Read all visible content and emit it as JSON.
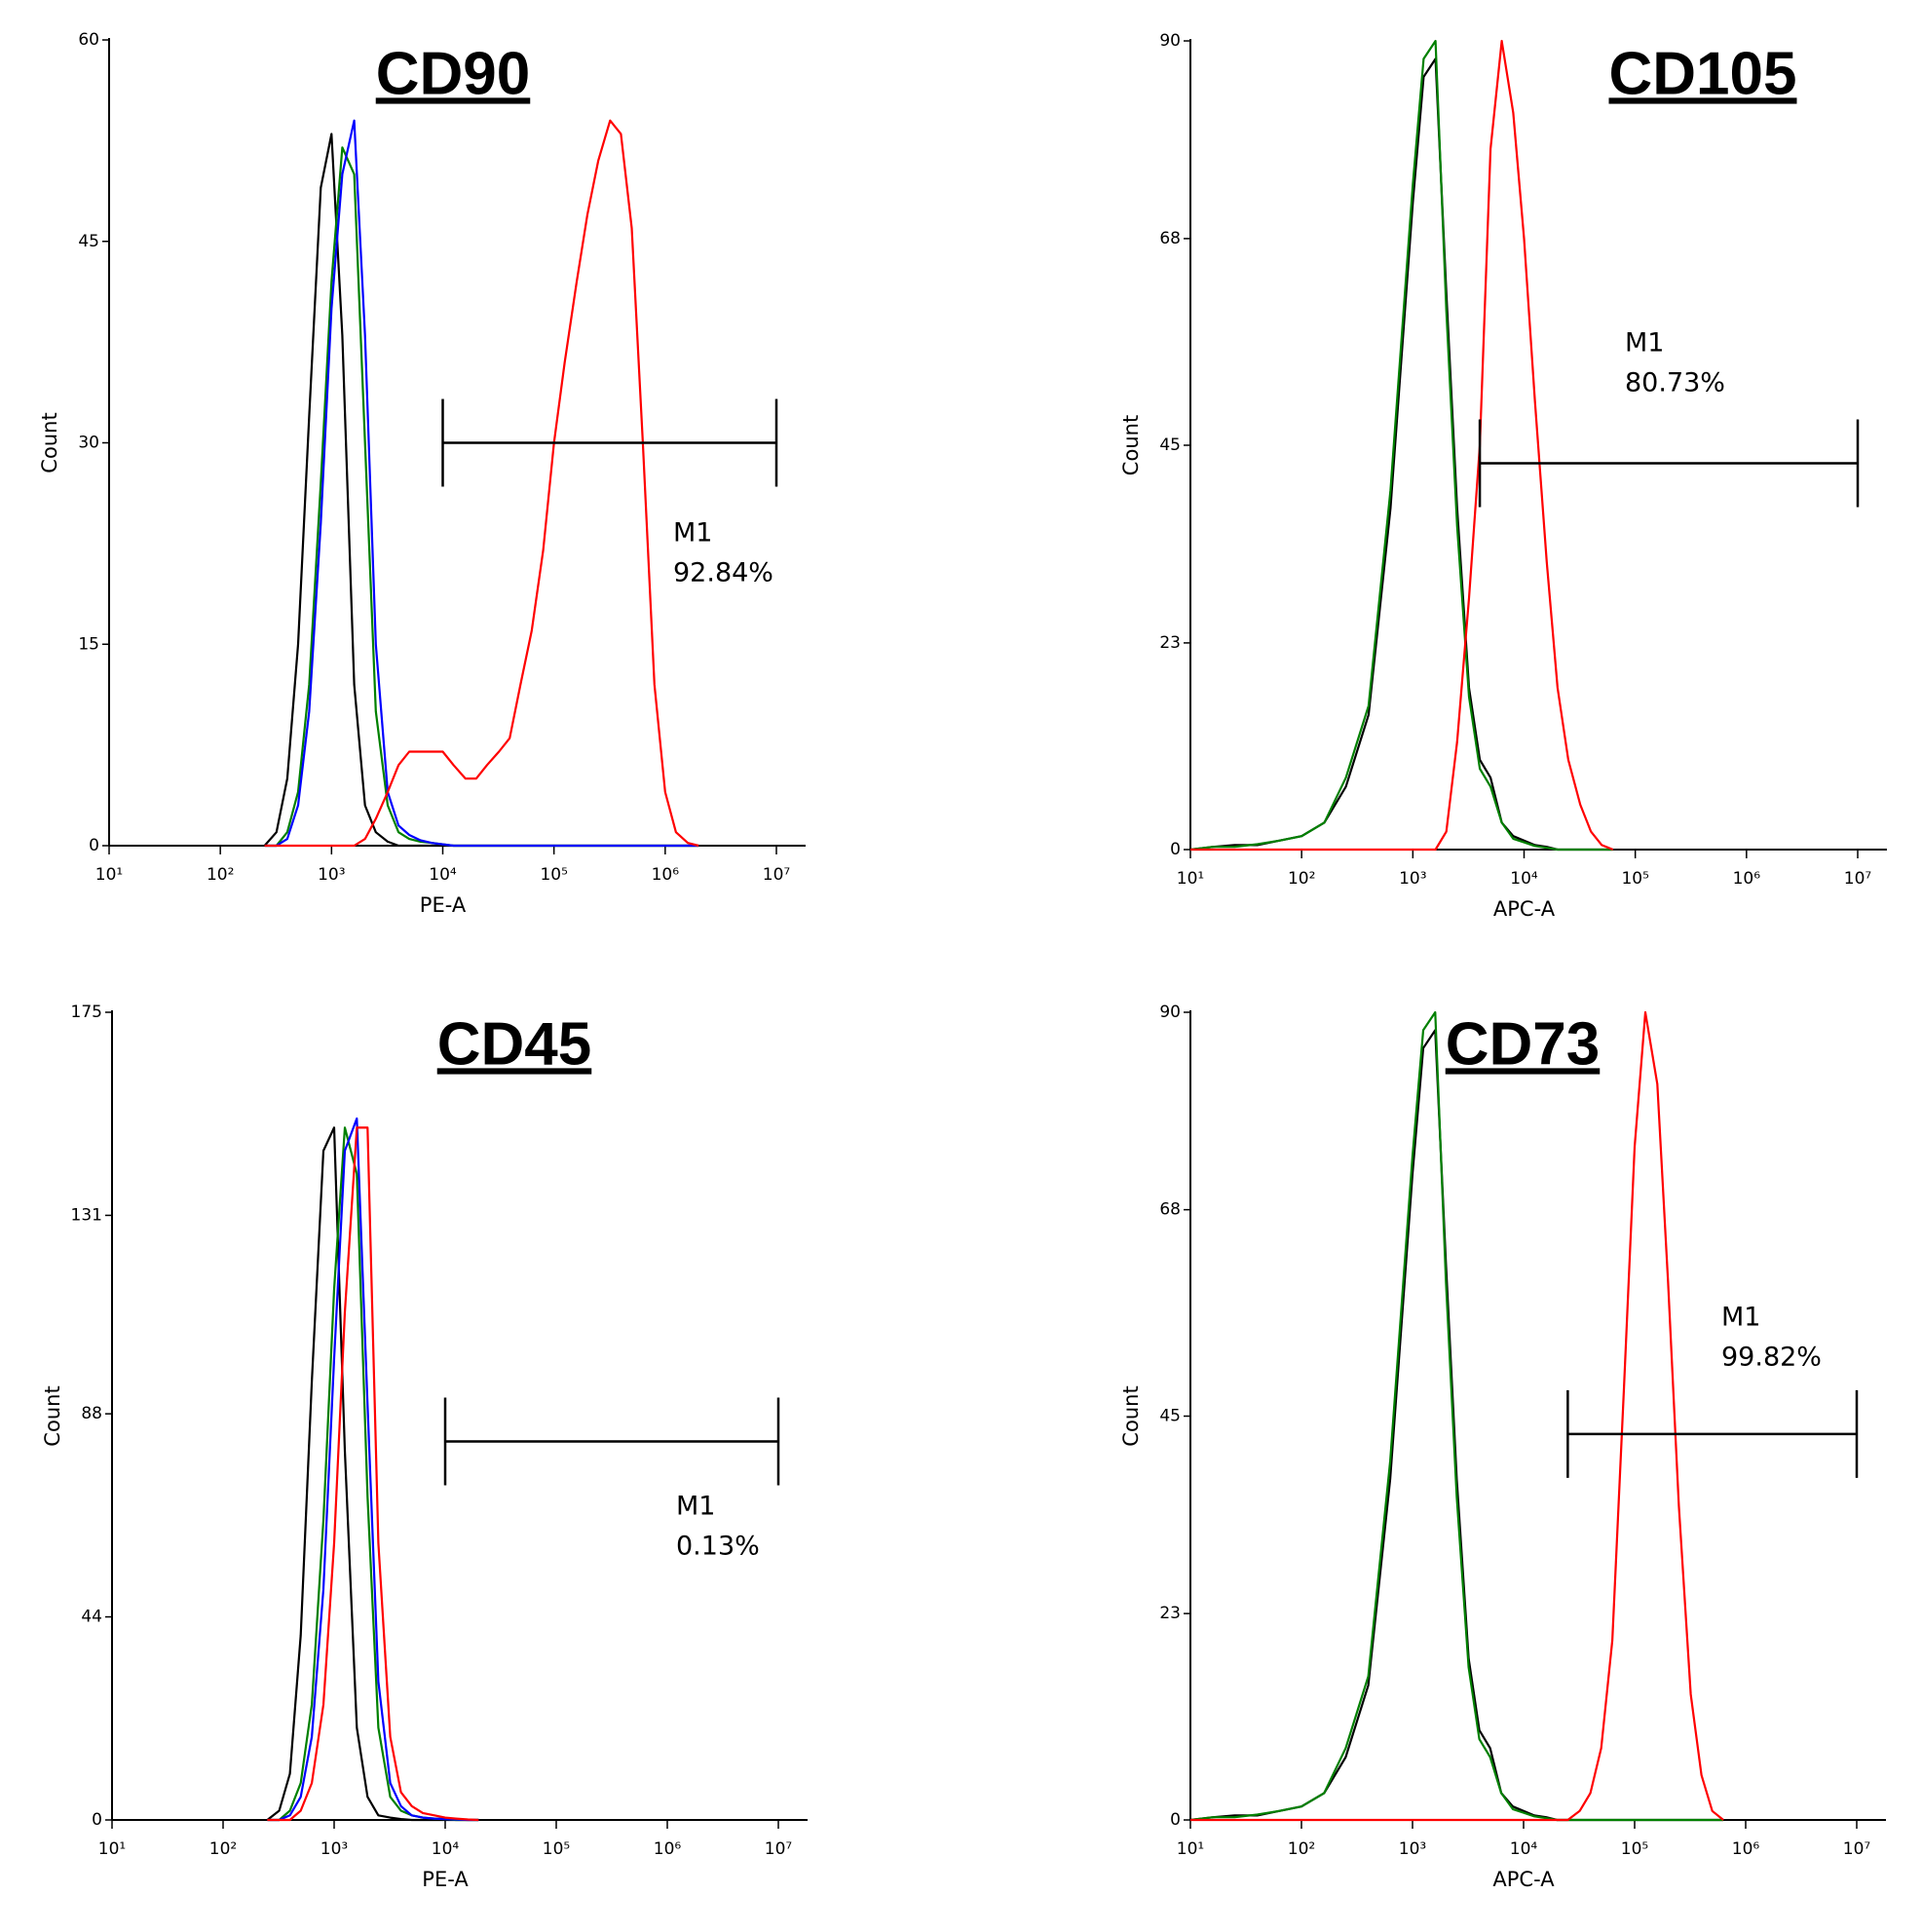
{
  "chart_data": [
    {
      "type": "line",
      "title": "CD90",
      "xlabel": "PE-A",
      "ylabel": "Count",
      "xscale": "log",
      "xlim": [
        10,
        10000000
      ],
      "ylim": [
        0,
        60
      ],
      "xticks": [
        {
          "value": 10,
          "label": "10¹"
        },
        {
          "value": 100,
          "label": "10²"
        },
        {
          "value": 1000,
          "label": "10³"
        },
        {
          "value": 10000,
          "label": "10⁴"
        },
        {
          "value": 100000,
          "label": "10⁵"
        },
        {
          "value": 1000000,
          "label": "10⁶"
        },
        {
          "value": 10000000,
          "label": "10⁷"
        }
      ],
      "yticks": [
        0,
        15,
        30,
        45,
        60
      ],
      "x": [
        250,
        320,
        400,
        500,
        630,
        800,
        1000,
        1250,
        1600,
        2000,
        2500,
        3200,
        4000,
        5000,
        6300,
        8000,
        10000,
        12500,
        16000,
        20000,
        25000,
        32000,
        40000,
        50000,
        63000,
        80000,
        100000,
        125000,
        160000,
        200000,
        250000,
        320000,
        400000,
        500000,
        630000,
        800000,
        1000000,
        1250000,
        1600000,
        2000000
      ],
      "series": [
        {
          "color": "#000000",
          "values": [
            0,
            1,
            5,
            15,
            32,
            49,
            53,
            38,
            12,
            3,
            1,
            0.3,
            0,
            0,
            0,
            0,
            0,
            0,
            0,
            0,
            0,
            0,
            0,
            0,
            0,
            0,
            0,
            0,
            0,
            0,
            0,
            0,
            0,
            0,
            0,
            0,
            0,
            0,
            0,
            0
          ]
        },
        {
          "color": "#008000",
          "values": [
            0,
            0,
            1,
            4,
            12,
            27,
            42,
            52,
            50,
            30,
            10,
            3,
            1,
            0.5,
            0.3,
            0.2,
            0.1,
            0,
            0,
            0,
            0,
            0,
            0,
            0,
            0,
            0,
            0,
            0,
            0,
            0,
            0,
            0,
            0,
            0,
            0,
            0,
            0,
            0,
            0,
            0
          ]
        },
        {
          "color": "#0000ff",
          "values": [
            0,
            0,
            0.5,
            3,
            10,
            24,
            40,
            50,
            54,
            38,
            15,
            4,
            1.5,
            0.8,
            0.4,
            0.2,
            0.1,
            0,
            0,
            0,
            0,
            0,
            0,
            0,
            0,
            0,
            0,
            0,
            0,
            0,
            0,
            0,
            0,
            0,
            0,
            0,
            0,
            0,
            0,
            0
          ]
        },
        {
          "color": "#ff0000",
          "values": [
            0,
            0,
            0,
            0,
            0,
            0,
            0,
            0,
            0,
            0.5,
            2,
            4,
            6,
            7,
            7,
            7,
            7,
            6,
            5,
            5,
            6,
            7,
            8,
            12,
            16,
            22,
            30,
            36,
            42,
            47,
            51,
            54,
            53,
            46,
            30,
            12,
            4,
            1,
            0.2,
            0
          ]
        }
      ],
      "marker": {
        "label": "M1",
        "percent": "92.84%",
        "x": [
          10000,
          10000000
        ],
        "y": 30
      }
    },
    {
      "type": "line",
      "title": "CD105",
      "xlabel": "APC-A",
      "ylabel": "Count",
      "xscale": "log",
      "xlim": [
        10,
        10000000
      ],
      "ylim": [
        0,
        90
      ],
      "xticks": [
        {
          "value": 10,
          "label": "10¹"
        },
        {
          "value": 100,
          "label": "10²"
        },
        {
          "value": 1000,
          "label": "10³"
        },
        {
          "value": 10000,
          "label": "10⁴"
        },
        {
          "value": 100000,
          "label": "10⁵"
        },
        {
          "value": 1000000,
          "label": "10⁶"
        },
        {
          "value": 10000000,
          "label": "10⁷"
        }
      ],
      "yticks": [
        0,
        23,
        45,
        68,
        90
      ],
      "x": [
        10,
        16,
        25,
        40,
        63,
        100,
        160,
        250,
        400,
        630,
        1000,
        1250,
        1600,
        2000,
        2500,
        3200,
        4000,
        5000,
        6300,
        8000,
        10000,
        12500,
        16000,
        20000,
        25000,
        32000,
        40000,
        50000,
        63000
      ],
      "series": [
        {
          "color": "#000000",
          "values": [
            0,
            0.3,
            0.5,
            0.5,
            1,
            1.5,
            3,
            7,
            15,
            38,
            72,
            86,
            88,
            62,
            38,
            18,
            10,
            8,
            3,
            1.5,
            1,
            0.5,
            0.3,
            0,
            0,
            0,
            0,
            0,
            0
          ]
        },
        {
          "color": "#008000",
          "values": [
            0,
            0.3,
            0.3,
            0.6,
            1,
            1.5,
            3,
            8,
            16,
            40,
            74,
            88,
            90,
            60,
            36,
            17,
            9,
            7,
            3,
            1.2,
            0.8,
            0.4,
            0.2,
            0,
            0,
            0,
            0,
            0,
            0
          ]
        },
        {
          "color": "#ff0000",
          "values": [
            0,
            0,
            0,
            0,
            0,
            0,
            0,
            0,
            0,
            0,
            0,
            0,
            0,
            2,
            12,
            28,
            45,
            78,
            90,
            82,
            68,
            50,
            32,
            18,
            10,
            5,
            2,
            0.5,
            0
          ]
        }
      ],
      "marker": {
        "label": "M1",
        "percent": "80.73%",
        "x": [
          4000,
          10000000
        ],
        "y": 43
      }
    },
    {
      "type": "line",
      "title": "CD45",
      "xlabel": "PE-A",
      "ylabel": "Count",
      "xscale": "log",
      "xlim": [
        10,
        10000000
      ],
      "ylim": [
        0,
        175
      ],
      "xticks": [
        {
          "value": 10,
          "label": "10¹"
        },
        {
          "value": 100,
          "label": "10²"
        },
        {
          "value": 1000,
          "label": "10³"
        },
        {
          "value": 10000,
          "label": "10⁴"
        },
        {
          "value": 100000,
          "label": "10⁵"
        },
        {
          "value": 1000000,
          "label": "10⁶"
        },
        {
          "value": 10000000,
          "label": "10⁷"
        }
      ],
      "yticks": [
        0,
        44,
        88,
        131,
        175
      ],
      "x": [
        250,
        320,
        400,
        500,
        630,
        800,
        1000,
        1250,
        1600,
        2000,
        2500,
        3200,
        4000,
        5000,
        6300,
        8000,
        10000,
        12500,
        16000,
        20000
      ],
      "series": [
        {
          "color": "#000000",
          "values": [
            0,
            2,
            10,
            40,
            95,
            145,
            150,
            80,
            20,
            5,
            1,
            0.5,
            0.2,
            0,
            0,
            0,
            0,
            0,
            0,
            0
          ]
        },
        {
          "color": "#008000",
          "values": [
            0,
            0,
            2,
            8,
            25,
            65,
            115,
            150,
            140,
            70,
            20,
            5,
            2,
            1,
            0.5,
            0.3,
            0.2,
            0,
            0,
            0
          ]
        },
        {
          "color": "#0000ff",
          "values": [
            0,
            0,
            1,
            5,
            18,
            50,
            100,
            145,
            152,
            90,
            30,
            8,
            3,
            1,
            0.5,
            0.3,
            0.2,
            0.1,
            0,
            0
          ]
        },
        {
          "color": "#ff0000",
          "values": [
            0,
            0,
            0,
            2,
            8,
            25,
            60,
            110,
            150,
            150,
            60,
            18,
            6,
            3,
            1.5,
            1,
            0.5,
            0.3,
            0.1,
            0
          ]
        }
      ],
      "marker": {
        "label": "M1",
        "percent": "0.13%",
        "x": [
          10000,
          10000000
        ],
        "y": 82
      }
    },
    {
      "type": "line",
      "title": "CD73",
      "xlabel": "APC-A",
      "ylabel": "Count",
      "xscale": "log",
      "xlim": [
        10,
        10000000
      ],
      "ylim": [
        0,
        90
      ],
      "xticks": [
        {
          "value": 10,
          "label": "10¹"
        },
        {
          "value": 100,
          "label": "10²"
        },
        {
          "value": 1000,
          "label": "10³"
        },
        {
          "value": 10000,
          "label": "10⁴"
        },
        {
          "value": 100000,
          "label": "10⁵"
        },
        {
          "value": 1000000,
          "label": "10⁶"
        },
        {
          "value": 10000000,
          "label": "10⁷"
        }
      ],
      "yticks": [
        0,
        23,
        45,
        68,
        90
      ],
      "x": [
        10,
        16,
        25,
        40,
        63,
        100,
        160,
        250,
        400,
        630,
        1000,
        1250,
        1600,
        2000,
        2500,
        3200,
        4000,
        5000,
        6300,
        8000,
        10000,
        12500,
        16000,
        20000,
        25000,
        32000,
        40000,
        50000,
        63000,
        80000,
        100000,
        125000,
        160000,
        200000,
        250000,
        320000,
        400000,
        500000,
        630000
      ],
      "series": [
        {
          "color": "#000000",
          "values": [
            0,
            0.3,
            0.5,
            0.5,
            1,
            1.5,
            3,
            7,
            15,
            38,
            72,
            86,
            88,
            62,
            38,
            18,
            10,
            8,
            3,
            1.5,
            1,
            0.5,
            0.3,
            0,
            0,
            0,
            0,
            0,
            0,
            0,
            0,
            0,
            0,
            0,
            0,
            0,
            0,
            0,
            0
          ]
        },
        {
          "color": "#008000",
          "values": [
            0,
            0.3,
            0.3,
            0.6,
            1,
            1.5,
            3,
            8,
            16,
            40,
            74,
            88,
            90,
            60,
            36,
            17,
            9,
            7,
            3,
            1.2,
            0.8,
            0.4,
            0.2,
            0,
            0,
            0,
            0,
            0,
            0,
            0,
            0,
            0,
            0,
            0,
            0,
            0,
            0,
            0,
            0
          ]
        },
        {
          "color": "#ff0000",
          "values": [
            0,
            0,
            0,
            0,
            0,
            0,
            0,
            0,
            0,
            0,
            0,
            0,
            0,
            0,
            0,
            0,
            0,
            0,
            0,
            0,
            0,
            0,
            0,
            0,
            0,
            1,
            3,
            8,
            20,
            48,
            75,
            90,
            82,
            60,
            35,
            14,
            5,
            1,
            0
          ]
        }
      ],
      "marker": {
        "label": "M1",
        "percent": "99.82%",
        "x": [
          25000,
          10000000
        ],
        "y": 43
      }
    }
  ]
}
